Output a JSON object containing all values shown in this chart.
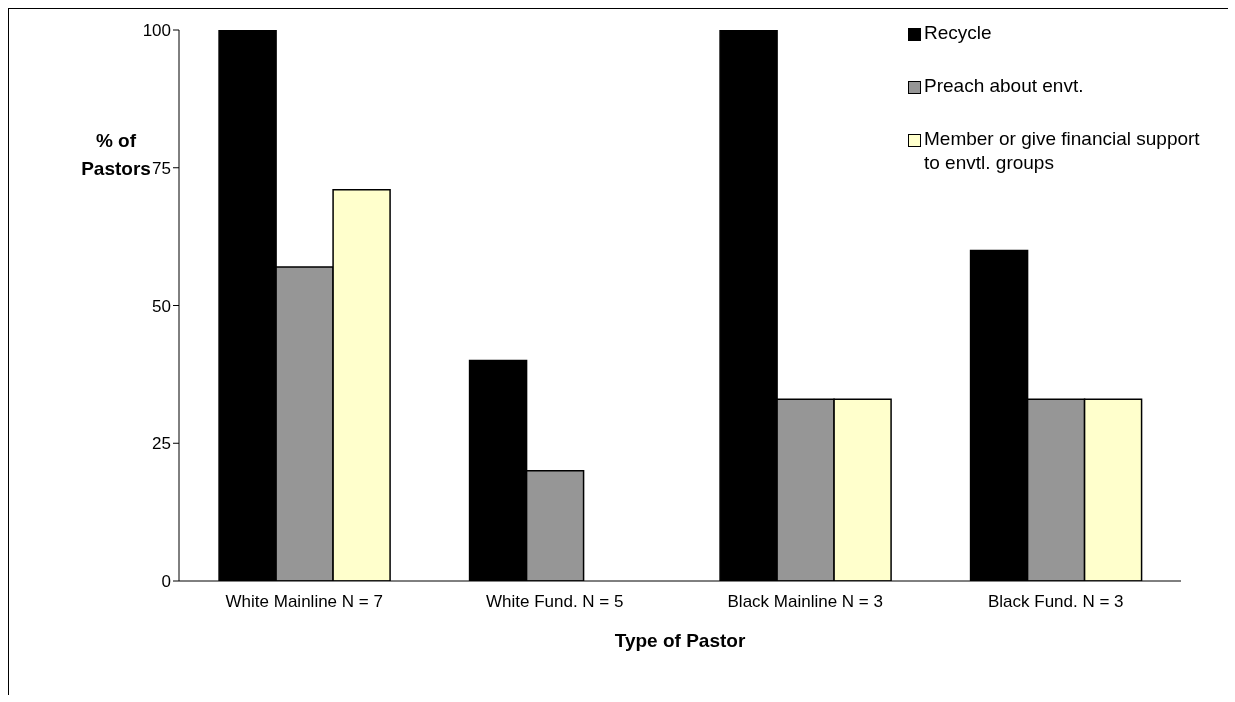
{
  "chart_data": {
    "type": "bar",
    "xlabel": "Type of Pastor",
    "ylabel": "% of Pastors",
    "categories": [
      "White Mainline N = 7",
      "White Fund. N = 5",
      "Black Mainline N = 3",
      "Black Fund. N = 3"
    ],
    "series": [
      {
        "name": "Recycle",
        "color": "#000000",
        "values": [
          100,
          40,
          100,
          60
        ]
      },
      {
        "name": "Preach about envt.",
        "color": "#969696",
        "values": [
          57,
          20,
          33,
          33
        ]
      },
      {
        "name": "Member or give financial support to envtl. groups",
        "color": "#ffffcc",
        "values": [
          71,
          0,
          33,
          33
        ]
      }
    ],
    "ylim": [
      0,
      100
    ],
    "yticks": [
      0,
      25,
      50,
      75,
      100
    ],
    "grid": false,
    "legend": "top right"
  }
}
